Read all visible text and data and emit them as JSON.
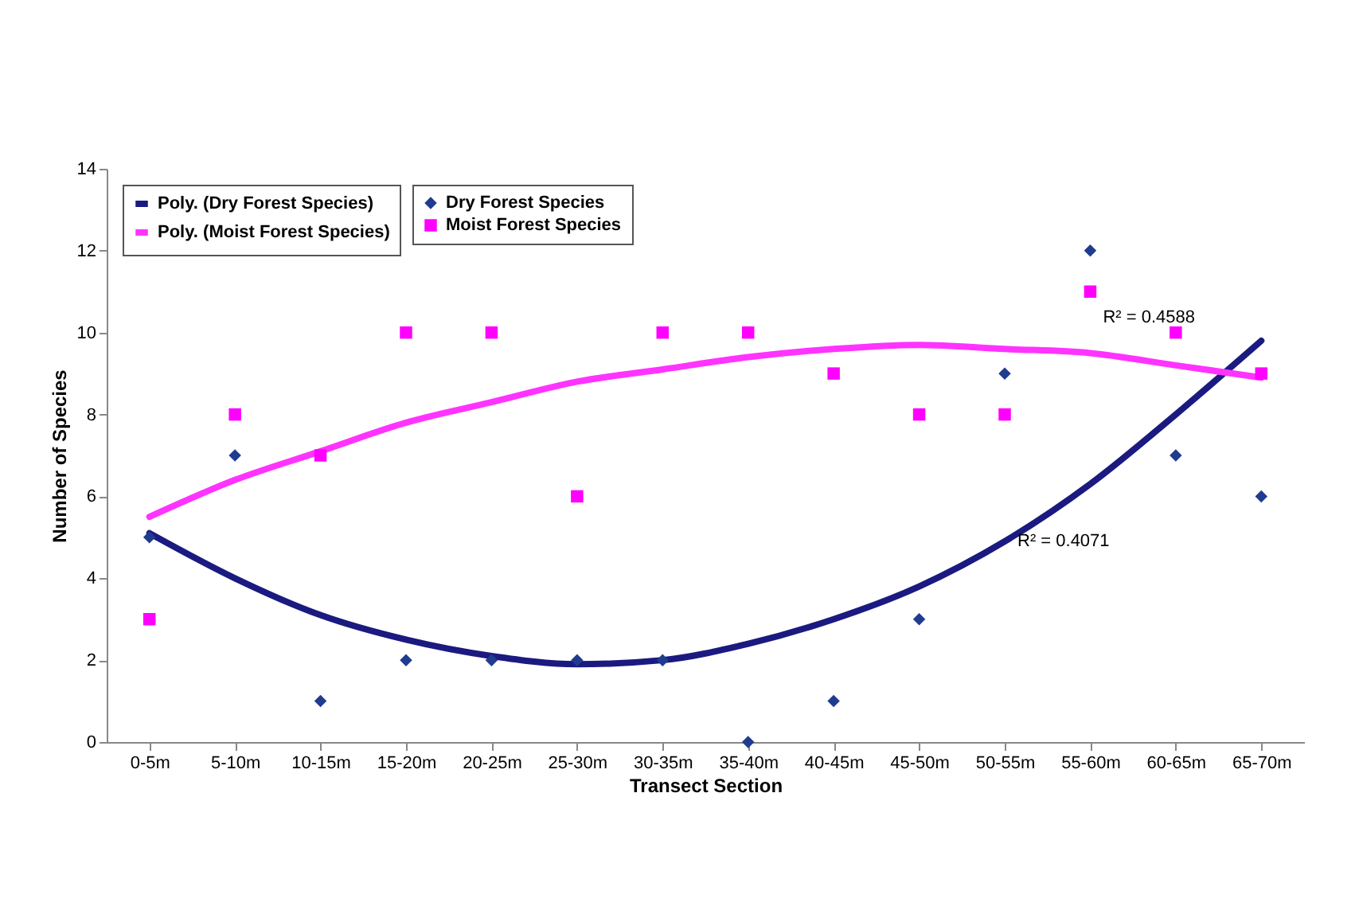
{
  "chart_data": {
    "type": "scatter",
    "xlabel": "Transect Section",
    "ylabel": "Number of Species",
    "categories": [
      "0-5m",
      "5-10m",
      "10-15m",
      "15-20m",
      "20-25m",
      "25-30m",
      "30-35m",
      "35-40m",
      "40-45m",
      "45-50m",
      "50-55m",
      "55-60m",
      "60-65m",
      "65-70m"
    ],
    "series": [
      {
        "name": "Dry Forest Species",
        "marker": "diamond",
        "color": "#1f3c8f",
        "values": [
          5,
          7,
          1,
          2,
          2,
          2,
          2,
          0,
          1,
          3,
          9,
          12,
          7,
          6
        ]
      },
      {
        "name": "Moist Forest Species",
        "marker": "square",
        "color": "#ff00ff",
        "values": [
          3,
          8,
          7,
          10,
          10,
          6,
          10,
          10,
          9,
          8,
          8,
          11,
          10,
          9
        ]
      },
      {
        "name": "Poly. (Dry Forest Species)",
        "type": "line",
        "line_style": "solid",
        "color": "#1a1a80",
        "values": [
          5.1,
          4.0,
          3.1,
          2.5,
          2.1,
          1.9,
          2.0,
          2.4,
          3.0,
          3.8,
          4.9,
          6.3,
          8.0,
          9.8
        ]
      },
      {
        "name": "Poly. (Moist Forest Species)",
        "type": "line",
        "line_style": "solid",
        "color": "#ff33ff",
        "values": [
          5.5,
          6.4,
          7.1,
          7.8,
          8.3,
          8.8,
          9.1,
          9.4,
          9.6,
          9.7,
          9.6,
          9.5,
          9.2,
          8.9
        ]
      }
    ],
    "ylim": [
      0,
      14
    ],
    "yticks": [
      0,
      2,
      4,
      6,
      8,
      10,
      12,
      14
    ],
    "grid": false,
    "legend": "top left",
    "annotations": [
      {
        "text": "R² = 0.4588",
        "x": "55-60m",
        "y": 9.5
      },
      {
        "text": "R² = 0.4071",
        "x": "50-55m",
        "y": 4.9
      }
    ]
  }
}
